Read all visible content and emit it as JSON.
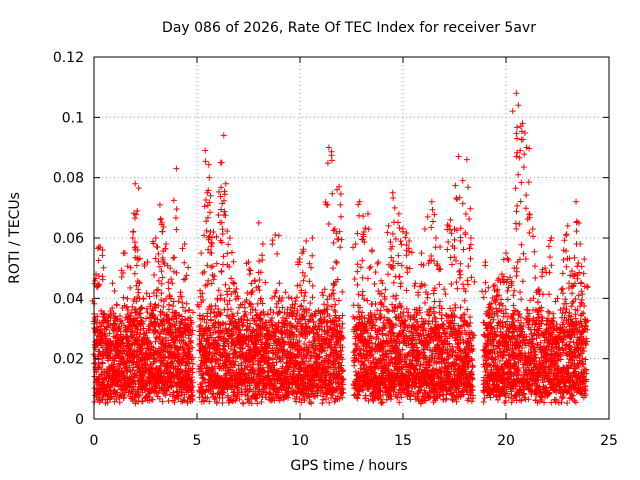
{
  "chart_data": {
    "type": "scatter",
    "title": "Day 086 of 2026, Rate Of TEC Index for receiver 5avr",
    "xlabel": "GPS time / hours",
    "ylabel": "ROTI / TECUs",
    "xlim": [
      0,
      25
    ],
    "ylim": [
      0,
      0.12
    ],
    "x_ticks": [
      "0",
      "5",
      "10",
      "15",
      "20",
      "25"
    ],
    "y_ticks": [
      "0",
      "0.02",
      "0.04",
      "0.06",
      "0.08",
      "0.1",
      "0.12"
    ],
    "grid": true,
    "marker": "plus",
    "color": "#ff0000",
    "data_gaps_hours": [
      [
        4.8,
        5.1
      ],
      [
        12.1,
        12.6
      ],
      [
        18.4,
        18.9
      ],
      [
        23.9,
        25
      ]
    ],
    "series": [
      {
        "x": [
          0.1,
          0.3,
          0.5,
          0.7,
          0.9,
          1.1,
          1.3,
          1.5,
          1.7,
          1.9,
          2.0,
          2.1,
          2.2,
          2.4,
          2.6,
          2.8,
          3.0,
          3.2,
          3.3,
          3.5,
          3.7,
          3.8,
          4.0,
          4.2,
          4.4,
          4.6,
          5.2,
          5.4,
          5.5,
          5.6,
          5.8,
          6.0,
          6.2,
          6.3,
          6.4,
          6.6,
          6.8,
          7.0,
          7.2,
          7.5,
          7.8,
          8.0,
          8.2,
          8.5,
          8.8,
          9.0,
          9.3,
          9.6,
          9.9,
          10.1,
          10.3,
          10.6,
          10.9,
          11.2,
          11.4,
          11.6,
          11.8,
          11.9,
          12.7,
          12.9,
          13.1,
          13.3,
          13.5,
          13.8,
          14.0,
          14.3,
          14.5,
          14.6,
          14.8,
          15.0,
          15.3,
          15.6,
          15.9,
          16.2,
          16.4,
          16.6,
          16.8,
          17.0,
          17.3,
          17.5,
          17.7,
          17.9,
          18.1,
          18.3,
          19.0,
          19.2,
          19.4,
          19.6,
          19.8,
          20.0,
          20.2,
          20.4,
          20.5,
          20.6,
          20.8,
          21.0,
          21.3,
          21.6,
          21.9,
          22.2,
          22.5,
          22.8,
          23.0,
          23.2,
          23.4,
          23.6,
          23.8
        ],
        "y": [
          0.048,
          0.057,
          0.035,
          0.026,
          0.045,
          0.038,
          0.028,
          0.055,
          0.034,
          0.062,
          0.078,
          0.069,
          0.045,
          0.04,
          0.052,
          0.035,
          0.06,
          0.071,
          0.065,
          0.058,
          0.05,
          0.045,
          0.083,
          0.042,
          0.058,
          0.036,
          0.055,
          0.089,
          0.075,
          0.08,
          0.062,
          0.04,
          0.085,
          0.094,
          0.078,
          0.06,
          0.045,
          0.04,
          0.038,
          0.052,
          0.046,
          0.065,
          0.058,
          0.032,
          0.061,
          0.045,
          0.042,
          0.04,
          0.052,
          0.055,
          0.059,
          0.06,
          0.036,
          0.043,
          0.09,
          0.05,
          0.076,
          0.077,
          0.058,
          0.072,
          0.062,
          0.068,
          0.056,
          0.052,
          0.045,
          0.064,
          0.075,
          0.07,
          0.068,
          0.063,
          0.059,
          0.045,
          0.055,
          0.067,
          0.072,
          0.06,
          0.057,
          0.043,
          0.066,
          0.063,
          0.087,
          0.079,
          0.086,
          0.06,
          0.052,
          0.038,
          0.044,
          0.046,
          0.048,
          0.055,
          0.047,
          0.05,
          0.108,
          0.104,
          0.098,
          0.09,
          0.063,
          0.043,
          0.05,
          0.06,
          0.04,
          0.056,
          0.064,
          0.049,
          0.072,
          0.058,
          0.053
        ],
        "band": {
          "description_free": true,
          "segments": [
            [
              0.0,
              4.8
            ],
            [
              5.1,
              12.1
            ],
            [
              12.6,
              18.4
            ],
            [
              18.9,
              23.9
            ]
          ],
          "low": 0.005,
          "typical_high": 0.03
        }
      }
    ]
  }
}
